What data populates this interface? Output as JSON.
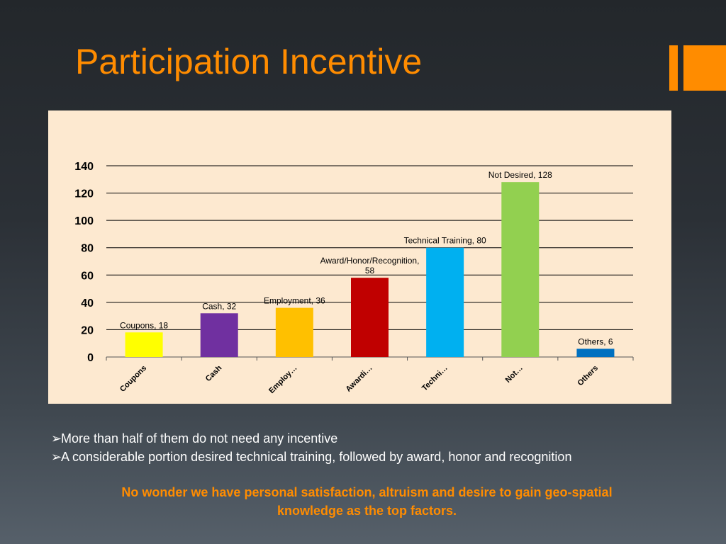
{
  "slide": {
    "title": "Participation Incentive",
    "accent_color": "#ff8c00",
    "chart_background": "#fde9d0"
  },
  "bullets": [
    "More than half of them do not need any incentive",
    "A considerable portion desired technical training, followed by award, honor and recognition"
  ],
  "bullet_icon": "arrow-bullet-icon",
  "bullet_glyph": "➢",
  "conclusion_line1": "No wonder we have personal satisfaction, altruism and desire to gain geo-spatial",
  "conclusion_line2": "knowledge as the top factors.",
  "chart_data": {
    "type": "bar",
    "categories": [
      "Coupons",
      "Cash",
      "Employment",
      "Award/Honor/Recognition",
      "Technical Training",
      "Not Desired",
      "Others"
    ],
    "tick_labels": [
      "Coupons",
      "Cash",
      "Employ…",
      "Awardi…",
      "Techni…",
      "Not…",
      "Others"
    ],
    "values": [
      18,
      32,
      36,
      58,
      80,
      128,
      6
    ],
    "data_labels": [
      [
        "Coupons, 18"
      ],
      [
        "Cash, 32"
      ],
      [
        "Employment, 36"
      ],
      [
        "Award/Honor/Recognition,",
        "58"
      ],
      [
        "Technical Training, 80"
      ],
      [
        "Not Desired, 128"
      ],
      [
        "Others, 6"
      ]
    ],
    "colors": [
      "#ffff00",
      "#7030a0",
      "#ffc000",
      "#c00000",
      "#00b0f0",
      "#92d050",
      "#0070c0"
    ],
    "ylim": [
      0,
      140
    ],
    "yticks": [
      0,
      20,
      40,
      60,
      80,
      100,
      120,
      140
    ],
    "grid": true,
    "legend": "none",
    "title": "",
    "xlabel": "",
    "ylabel": ""
  }
}
